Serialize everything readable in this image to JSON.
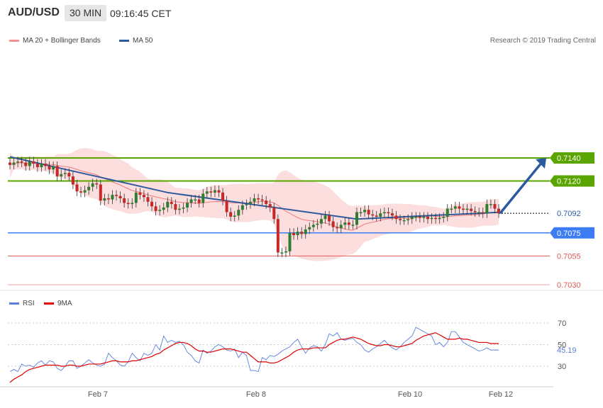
{
  "header": {
    "pair": "AUD/USD",
    "timeframe": "30 MIN",
    "time": "09:16:45 CET"
  },
  "legend": {
    "ma20": "MA 20 + Bollinger Bands",
    "ma50": "MA 50",
    "copyright": "Research © 2019 Trading Central"
  },
  "rsi_legend": {
    "rsi": "RSI",
    "ma9": "9MA"
  },
  "colors": {
    "resistance": "#5aa500",
    "support_blue": "#3d7df4",
    "support_red": "#e05a5a",
    "candle_up": "#2e7d32",
    "candle_down": "#c62828",
    "ma50": "#2f5a9e",
    "bollinger": "#fcd6d6",
    "arrow": "#2c5aa0"
  },
  "chart_data": [
    {
      "type": "candlestick",
      "title": "",
      "x_labels": [
        "Feb 7",
        "Feb 8",
        "Feb 10",
        "Feb 12"
      ],
      "ylim": [
        7.002,
        7.0168
      ],
      "y_scale_note": "price x 0.1",
      "levels": [
        {
          "value": 0.714,
          "label": "0.7140",
          "kind": "resistance"
        },
        {
          "value": 0.712,
          "label": "0.7120",
          "kind": "resistance"
        },
        {
          "value": 0.7092,
          "label": "0.7092",
          "kind": "last"
        },
        {
          "value": 0.7075,
          "label": "0.7075",
          "kind": "support"
        },
        {
          "value": 0.7055,
          "label": "0.7055",
          "kind": "support2"
        },
        {
          "value": 0.703,
          "label": "0.7030",
          "kind": "support3"
        }
      ],
      "closes": [
        0.7134,
        0.7136,
        0.7137,
        0.7136,
        0.7133,
        0.7137,
        0.7135,
        0.7132,
        0.7135,
        0.7133,
        0.713,
        0.7133,
        0.7124,
        0.7126,
        0.7127,
        0.7124,
        0.7117,
        0.7111,
        0.711,
        0.7112,
        0.7115,
        0.7118,
        0.7117,
        0.7103,
        0.7105,
        0.7104,
        0.7108,
        0.7107,
        0.7105,
        0.7101,
        0.71,
        0.7101,
        0.711,
        0.7108,
        0.7106,
        0.7102,
        0.7098,
        0.7094,
        0.7095,
        0.7097,
        0.7102,
        0.71,
        0.7095,
        0.7096,
        0.7097,
        0.7101,
        0.7104,
        0.7104,
        0.7101,
        0.7109,
        0.7111,
        0.711,
        0.7112,
        0.711,
        0.7103,
        0.7093,
        0.7089,
        0.709,
        0.7095,
        0.7099,
        0.71,
        0.7102,
        0.7105,
        0.7104,
        0.7103,
        0.71,
        0.7097,
        0.7087,
        0.7058,
        0.7058,
        0.7059,
        0.7075,
        0.7073,
        0.7076,
        0.7074,
        0.7078,
        0.708,
        0.7082,
        0.7083,
        0.7087,
        0.709,
        0.7085,
        0.708,
        0.7079,
        0.7082,
        0.7084,
        0.7082,
        0.7082,
        0.7093,
        0.7093,
        0.7095,
        0.7091,
        0.709,
        0.7089,
        0.7092,
        0.7093,
        0.7092,
        0.709,
        0.7087,
        0.7086,
        0.7086,
        0.7087,
        0.7089,
        0.7089,
        0.7088,
        0.7089,
        0.7087,
        0.7088,
        0.7087,
        0.7088,
        0.7089,
        0.7096,
        0.7096,
        0.7098,
        0.7096,
        0.7095,
        0.7096,
        0.7094,
        0.7093,
        0.7093,
        0.7092,
        0.71,
        0.71,
        0.7096,
        0.7092
      ],
      "ma50": [
        {
          "x": 0,
          "y": 0.7141
        },
        {
          "x": 40,
          "y": 0.711
        },
        {
          "x": 88,
          "y": 0.7087
        },
        {
          "x": 125,
          "y": 0.7093
        }
      ],
      "forecast_arrow": {
        "from": 0.7092,
        "to": 0.714
      }
    },
    {
      "type": "line",
      "title": "RSI",
      "y_ticks": [
        30,
        50,
        70
      ],
      "ylim": [
        15,
        85
      ],
      "last_rsi": "45.19",
      "series": [
        {
          "name": "RSI",
          "values": [
            25,
            27,
            25,
            32,
            30,
            31,
            29,
            33,
            35,
            31,
            35,
            34,
            28,
            26,
            30,
            35,
            35,
            28,
            30,
            33,
            36,
            33,
            31,
            30,
            32,
            42,
            38,
            35,
            31,
            30,
            34,
            42,
            38,
            35,
            42,
            40,
            42,
            50,
            45,
            58,
            52,
            54,
            52,
            53,
            50,
            43,
            40,
            35,
            33,
            45,
            42,
            44,
            48,
            50,
            48,
            45,
            44,
            46,
            38,
            43,
            40,
            26,
            26,
            25,
            38,
            36,
            40,
            39,
            41,
            44,
            46,
            48,
            52,
            55,
            48,
            42,
            47,
            49,
            48,
            44,
            50,
            60,
            58,
            61,
            55,
            54,
            55,
            56,
            52,
            50,
            45,
            43,
            46,
            48,
            51,
            54,
            50,
            47,
            45,
            48,
            52,
            55,
            58,
            66,
            64,
            62,
            60,
            58,
            50,
            52,
            48,
            52,
            62,
            62,
            57,
            52,
            50,
            48,
            46,
            44,
            45,
            47,
            45,
            45,
            45
          ]
        },
        {
          "name": "9MA",
          "values": [
            15,
            18,
            20,
            22,
            25,
            27,
            28,
            29,
            30,
            31,
            31,
            31,
            31,
            30,
            30,
            31,
            31,
            30,
            30,
            31,
            32,
            32,
            32,
            32,
            33,
            34,
            35,
            35,
            34,
            34,
            34,
            35,
            35,
            36,
            37,
            38,
            39,
            41,
            42,
            45,
            47,
            49,
            51,
            52,
            52,
            51,
            49,
            46,
            44,
            44,
            43,
            43,
            44,
            45,
            46,
            46,
            46,
            45,
            44,
            43,
            43,
            40,
            37,
            34,
            34,
            34,
            33,
            33,
            34,
            36,
            38,
            40,
            43,
            45,
            46,
            46,
            46,
            47,
            47,
            47,
            47,
            50,
            52,
            54,
            55,
            55,
            56,
            57,
            56,
            55,
            53,
            51,
            50,
            49,
            49,
            50,
            50,
            49,
            48,
            48,
            49,
            50,
            51,
            54,
            56,
            58,
            59,
            60,
            61,
            59,
            57,
            55,
            55,
            55,
            56,
            55,
            55,
            54,
            53,
            52,
            52,
            52,
            51,
            51,
            51
          ]
        }
      ]
    }
  ]
}
